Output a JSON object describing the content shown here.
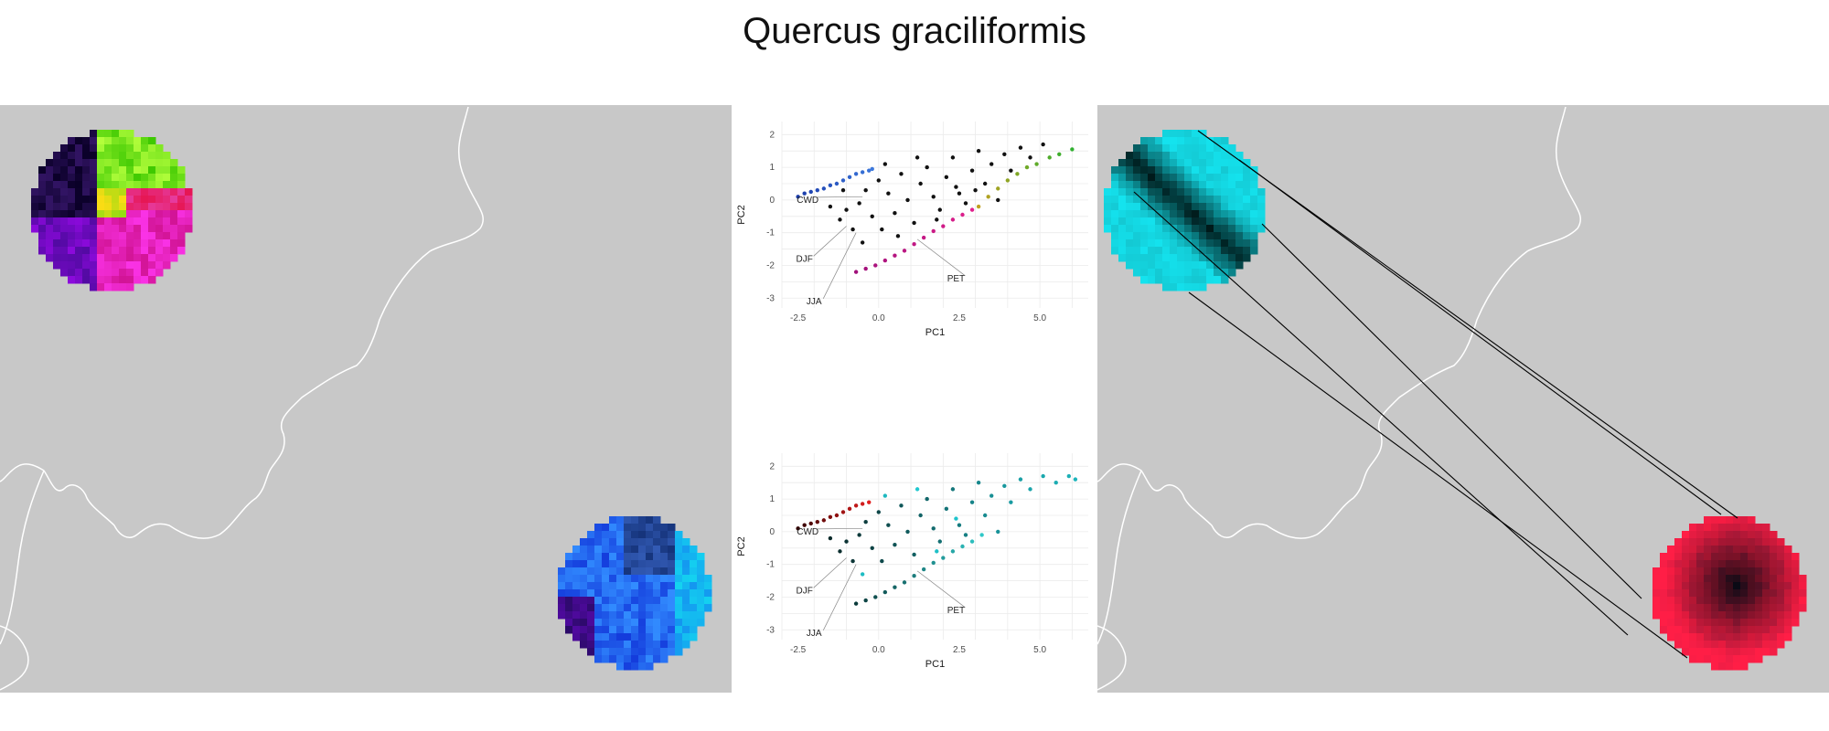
{
  "title": "Quercus graciliformis",
  "colors": {
    "map_background": "#c8c8c8",
    "border_line": "#ffffff",
    "grid": "#ebebeb",
    "connector": "#000000"
  },
  "left_map": {
    "regions": [
      {
        "name": "upper-left-circle",
        "palette": "multicolor: black, purple, green, yellow, red, magenta"
      },
      {
        "name": "lower-right-circle",
        "palette": "blue"
      }
    ]
  },
  "right_map": {
    "regions": [
      {
        "name": "upper-left-circle",
        "palette": "cyan with dark band"
      },
      {
        "name": "lower-right-circle",
        "palette": "red with black centre"
      }
    ]
  },
  "chart_data": [
    {
      "type": "scatter",
      "panel": "top",
      "xlabel": "PC1",
      "ylabel": "PC2",
      "xlim": [
        -3,
        6.5
      ],
      "ylim": [
        -3.3,
        2.4
      ],
      "xticks": [
        "-2.5",
        "0.0",
        "2.5",
        "5.0"
      ],
      "xtick_values": [
        -2.5,
        0,
        2.5,
        5
      ],
      "yticks": [
        "2",
        "1",
        "0",
        "-1",
        "-2",
        "-3"
      ],
      "ytick_values": [
        2,
        1,
        0,
        -1,
        -2,
        -3
      ],
      "grid": true,
      "annotations": [
        {
          "text": "CWD",
          "x": -2.2,
          "y": 0,
          "tx": -0.5,
          "ty": 0.1
        },
        {
          "text": "DJF",
          "x": -2.3,
          "y": -1.8,
          "tx": -1.0,
          "ty": -0.8
        },
        {
          "text": "JJA",
          "x": -2.0,
          "y": -3.1,
          "tx": -0.7,
          "ty": -1.0
        },
        {
          "text": "PET",
          "x": 2.4,
          "y": -2.4,
          "tx": 1.2,
          "ty": -1.2
        }
      ],
      "series": [
        {
          "group": "upper-left-arm",
          "color_range": [
            "#1a3caa",
            "#3c78dc"
          ],
          "points": [
            [
              -2.5,
              0.1
            ],
            [
              -2.3,
              0.2
            ],
            [
              -2.1,
              0.25
            ],
            [
              -1.9,
              0.3
            ],
            [
              -1.7,
              0.35
            ],
            [
              -1.5,
              0.45
            ],
            [
              -1.3,
              0.5
            ],
            [
              -1.1,
              0.6
            ],
            [
              -0.9,
              0.7
            ],
            [
              -0.7,
              0.8
            ],
            [
              -0.5,
              0.85
            ],
            [
              -0.3,
              0.9
            ],
            [
              -0.2,
              0.95
            ]
          ]
        },
        {
          "group": "lower-arm",
          "color_range": [
            "#a0107a",
            "#e0208c"
          ],
          "points": [
            [
              -0.7,
              -2.2
            ],
            [
              -0.4,
              -2.1
            ],
            [
              -0.1,
              -2.0
            ],
            [
              0.2,
              -1.85
            ],
            [
              0.5,
              -1.7
            ],
            [
              0.8,
              -1.55
            ],
            [
              1.1,
              -1.35
            ],
            [
              1.4,
              -1.15
            ],
            [
              1.7,
              -0.95
            ],
            [
              2.0,
              -0.8
            ],
            [
              2.3,
              -0.6
            ],
            [
              2.6,
              -0.45
            ],
            [
              2.9,
              -0.3
            ]
          ]
        },
        {
          "group": "lower-right-arm",
          "color_range": [
            "#c0a020",
            "#30b030"
          ],
          "points": [
            [
              3.1,
              -0.2
            ],
            [
              3.4,
              0.1
            ],
            [
              3.7,
              0.35
            ],
            [
              4.0,
              0.6
            ],
            [
              4.3,
              0.8
            ],
            [
              4.6,
              1.0
            ],
            [
              4.9,
              1.1
            ],
            [
              5.3,
              1.3
            ],
            [
              5.6,
              1.4
            ],
            [
              6.0,
              1.55
            ]
          ]
        },
        {
          "group": "interior",
          "color": "#111111",
          "points": [
            [
              -1.5,
              -0.2
            ],
            [
              -1.2,
              -0.6
            ],
            [
              -1.0,
              -0.3
            ],
            [
              -0.8,
              -0.9
            ],
            [
              -0.6,
              -0.1
            ],
            [
              -0.4,
              0.3
            ],
            [
              -0.2,
              -0.5
            ],
            [
              0.0,
              0.6
            ],
            [
              0.1,
              -0.9
            ],
            [
              0.3,
              0.2
            ],
            [
              0.5,
              -0.4
            ],
            [
              0.7,
              0.8
            ],
            [
              0.9,
              0.0
            ],
            [
              1.1,
              -0.7
            ],
            [
              1.3,
              0.5
            ],
            [
              1.5,
              1.0
            ],
            [
              1.7,
              0.1
            ],
            [
              1.9,
              -0.3
            ],
            [
              2.1,
              0.7
            ],
            [
              2.3,
              1.3
            ],
            [
              2.5,
              0.2
            ],
            [
              2.7,
              -0.1
            ],
            [
              2.9,
              0.9
            ],
            [
              3.1,
              1.5
            ],
            [
              3.3,
              0.5
            ],
            [
              3.5,
              1.1
            ],
            [
              3.7,
              0.0
            ],
            [
              3.9,
              1.4
            ],
            [
              4.1,
              0.9
            ],
            [
              4.4,
              1.6
            ],
            [
              4.7,
              1.3
            ],
            [
              5.1,
              1.7
            ],
            [
              0.2,
              1.1
            ],
            [
              -0.5,
              -1.3
            ],
            [
              1.8,
              -0.6
            ],
            [
              2.4,
              0.4
            ],
            [
              -1.1,
              0.3
            ],
            [
              0.6,
              -1.1
            ],
            [
              1.2,
              1.3
            ],
            [
              3.0,
              0.3
            ]
          ]
        }
      ]
    },
    {
      "type": "scatter",
      "panel": "bottom",
      "xlabel": "PC1",
      "ylabel": "PC2",
      "xlim": [
        -3,
        6.5
      ],
      "ylim": [
        -3.3,
        2.4
      ],
      "xticks": [
        "-2.5",
        "0.0",
        "2.5",
        "5.0"
      ],
      "xtick_values": [
        -2.5,
        0,
        2.5,
        5
      ],
      "yticks": [
        "2",
        "1",
        "0",
        "-1",
        "-2",
        "-3"
      ],
      "ytick_values": [
        2,
        1,
        0,
        -1,
        -2,
        -3
      ],
      "grid": true,
      "annotations": [
        {
          "text": "CWD",
          "x": -2.2,
          "y": 0,
          "tx": -0.5,
          "ty": 0.1
        },
        {
          "text": "DJF",
          "x": -2.3,
          "y": -1.8,
          "tx": -1.0,
          "ty": -0.8
        },
        {
          "text": "JJA",
          "x": -2.0,
          "y": -3.1,
          "tx": -0.7,
          "ty": -1.0
        },
        {
          "text": "PET",
          "x": 2.4,
          "y": -2.4,
          "tx": 1.2,
          "ty": -1.2
        }
      ],
      "series": [
        {
          "group": "upper-left-arm",
          "color_range": [
            "#300000",
            "#e02020"
          ],
          "points": [
            [
              -2.5,
              0.1
            ],
            [
              -2.3,
              0.2
            ],
            [
              -2.1,
              0.25
            ],
            [
              -1.9,
              0.3
            ],
            [
              -1.7,
              0.35
            ],
            [
              -1.5,
              0.45
            ],
            [
              -1.3,
              0.5
            ],
            [
              -1.1,
              0.6
            ],
            [
              -0.9,
              0.7
            ],
            [
              -0.7,
              0.8
            ],
            [
              -0.5,
              0.85
            ],
            [
              -0.3,
              0.9
            ]
          ]
        },
        {
          "group": "lower-arm",
          "color_range": [
            "#0a3a3a",
            "#30c8c8"
          ],
          "points": [
            [
              -0.7,
              -2.2
            ],
            [
              -0.4,
              -2.1
            ],
            [
              -0.1,
              -2.0
            ],
            [
              0.2,
              -1.85
            ],
            [
              0.5,
              -1.7
            ],
            [
              0.8,
              -1.55
            ],
            [
              1.1,
              -1.35
            ],
            [
              1.4,
              -1.15
            ],
            [
              1.7,
              -0.95
            ],
            [
              2.0,
              -0.8
            ],
            [
              2.3,
              -0.6
            ],
            [
              2.6,
              -0.45
            ],
            [
              2.9,
              -0.3
            ],
            [
              3.2,
              -0.1
            ]
          ]
        },
        {
          "group": "interior",
          "color_range": [
            "#0a2a2a",
            "#20c8d0"
          ],
          "points": [
            [
              -1.5,
              -0.2
            ],
            [
              -1.2,
              -0.6
            ],
            [
              -1.0,
              -0.3
            ],
            [
              -0.8,
              -0.9
            ],
            [
              -0.6,
              -0.1
            ],
            [
              -0.4,
              0.3
            ],
            [
              -0.2,
              -0.5
            ],
            [
              0.0,
              0.6
            ],
            [
              0.1,
              -0.9
            ],
            [
              0.3,
              0.2
            ],
            [
              0.5,
              -0.4
            ],
            [
              0.7,
              0.8
            ],
            [
              0.9,
              0.0
            ],
            [
              1.1,
              -0.7
            ],
            [
              1.3,
              0.5
            ],
            [
              1.5,
              1.0
            ],
            [
              1.7,
              0.1
            ],
            [
              1.9,
              -0.3
            ],
            [
              2.1,
              0.7
            ],
            [
              2.3,
              1.3
            ],
            [
              2.5,
              0.2
            ],
            [
              2.7,
              -0.1
            ],
            [
              2.9,
              0.9
            ],
            [
              3.1,
              1.5
            ],
            [
              3.3,
              0.5
            ],
            [
              3.5,
              1.1
            ],
            [
              3.7,
              0.0
            ],
            [
              3.9,
              1.4
            ],
            [
              4.1,
              0.9
            ],
            [
              4.4,
              1.6
            ],
            [
              4.7,
              1.3
            ],
            [
              5.1,
              1.7
            ],
            [
              5.5,
              1.5
            ],
            [
              5.9,
              1.7
            ],
            [
              6.1,
              1.6
            ],
            [
              0.2,
              1.1
            ],
            [
              -0.5,
              -1.3
            ],
            [
              1.8,
              -0.6
            ],
            [
              2.4,
              0.4
            ],
            [
              1.2,
              1.3
            ]
          ]
        }
      ]
    }
  ]
}
